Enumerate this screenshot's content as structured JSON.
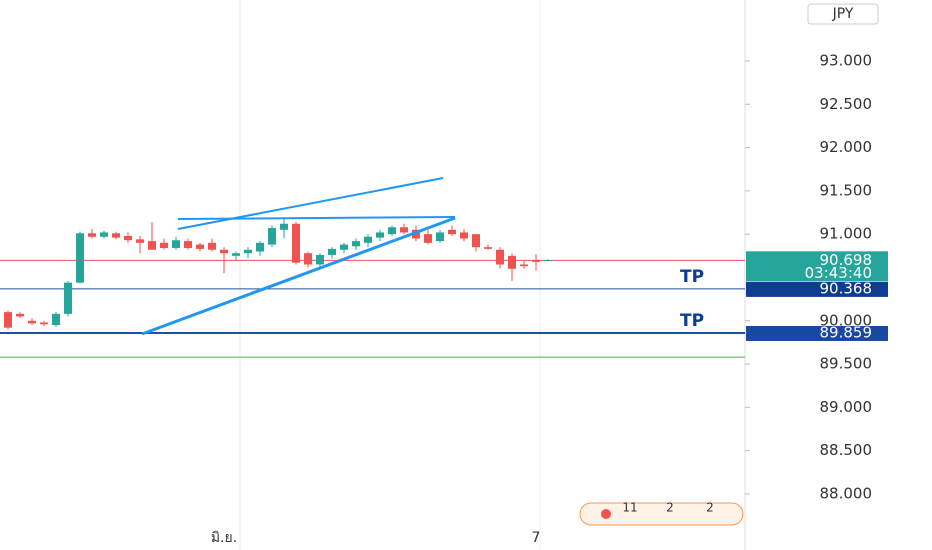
{
  "chart_data": {
    "type": "candlestick",
    "currency": "JPY",
    "categories": [
      null,
      null,
      null,
      null,
      null,
      null,
      null,
      null,
      null,
      null,
      null,
      null,
      null,
      null,
      null,
      null,
      null,
      null,
      "มิ.ย.",
      null,
      null,
      null,
      null,
      null,
      null,
      null,
      null,
      null,
      null,
      null,
      null,
      null,
      null,
      null,
      null,
      null,
      null,
      null,
      null,
      null,
      null,
      null,
      null,
      null,
      "7",
      null
    ],
    "series": [
      {
        "name": "open",
        "values": [
          90.1,
          90.08,
          90.0,
          89.98,
          89.95,
          90.08,
          90.44,
          91.01,
          90.97,
          91.01,
          90.98,
          90.94,
          90.92,
          90.9,
          90.84,
          90.92,
          90.88,
          90.9,
          90.82,
          90.75,
          90.78,
          90.8,
          90.88,
          91.05,
          91.12,
          90.78,
          90.65,
          90.76,
          90.82,
          90.86,
          90.9,
          90.96,
          91.0,
          91.08,
          91.05,
          91.0,
          90.92,
          91.05,
          91.02,
          91.0,
          90.85,
          90.82,
          90.75,
          90.65,
          90.7,
          90.7
        ]
      },
      {
        "name": "high",
        "values": [
          90.12,
          90.1,
          90.03,
          90.0,
          90.1,
          90.46,
          91.03,
          91.06,
          91.04,
          91.03,
          91.02,
          90.98,
          91.14,
          90.95,
          90.97,
          90.95,
          90.9,
          90.95,
          90.85,
          90.8,
          90.85,
          90.92,
          91.1,
          91.18,
          91.14,
          90.8,
          90.78,
          90.85,
          90.9,
          90.95,
          91.0,
          91.05,
          91.1,
          91.12,
          91.1,
          91.05,
          91.05,
          91.1,
          91.06,
          91.0,
          90.88,
          90.85,
          90.78,
          90.7,
          90.77,
          90.71
        ]
      },
      {
        "name": "low",
        "values": [
          89.9,
          90.03,
          89.95,
          89.94,
          89.93,
          90.05,
          90.43,
          90.95,
          90.95,
          90.94,
          90.9,
          90.78,
          90.83,
          90.82,
          90.82,
          90.82,
          90.8,
          90.8,
          90.55,
          90.7,
          90.72,
          90.75,
          90.85,
          90.95,
          90.65,
          90.62,
          90.6,
          90.72,
          90.78,
          90.82,
          90.85,
          90.92,
          90.98,
          91.0,
          90.92,
          90.88,
          90.9,
          90.98,
          90.92,
          90.8,
          90.82,
          90.6,
          90.46,
          90.6,
          90.58,
          90.69
        ]
      },
      {
        "name": "close",
        "values": [
          89.92,
          90.05,
          89.97,
          89.96,
          90.08,
          90.44,
          91.01,
          90.97,
          91.02,
          90.96,
          90.93,
          90.9,
          90.82,
          90.84,
          90.93,
          90.84,
          90.83,
          90.82,
          90.78,
          90.78,
          90.82,
          90.9,
          91.07,
          91.12,
          90.67,
          90.65,
          90.76,
          90.83,
          90.88,
          90.92,
          90.97,
          91.02,
          91.08,
          91.02,
          90.95,
          90.9,
          91.02,
          91.0,
          90.95,
          90.85,
          90.83,
          90.65,
          90.6,
          90.63,
          90.68,
          90.7
        ]
      }
    ],
    "up_color": "#26a69a",
    "down_color": "#ef5350",
    "ylim": [
      87.353,
      93.704
    ],
    "yticks": [
      {
        "value": 93,
        "label": "93.000"
      },
      {
        "value": 92.5,
        "label": "92.500"
      },
      {
        "value": 92,
        "label": "92.000"
      },
      {
        "value": 91.5,
        "label": "91.500"
      },
      {
        "value": 91,
        "label": "91.000"
      },
      {
        "value": 90,
        "label": "90.000"
      },
      {
        "value": 89.5,
        "label": "89.500"
      },
      {
        "value": 89,
        "label": "89.000"
      },
      {
        "value": 88.5,
        "label": "88.500"
      },
      {
        "value": 88,
        "label": "88.000"
      }
    ],
    "price_lines": [
      {
        "value": 90.698,
        "label": "90.698",
        "color": "#ef5350",
        "tag_color": "#26a69a"
      },
      {
        "value": 90.368,
        "label": "90.368",
        "color": "#1e4fa0",
        "tag_color": "#0d3c91"
      },
      {
        "value": 89.859,
        "label": "89.859",
        "color": "#1e4fa0",
        "tag_color": "#1848a0"
      },
      {
        "value": 89.58,
        "color": "#4caf50"
      }
    ],
    "countdown": "03:43:40",
    "annotations": [
      "TP",
      "TP"
    ],
    "events": [
      "11",
      "2",
      "2"
    ]
  }
}
